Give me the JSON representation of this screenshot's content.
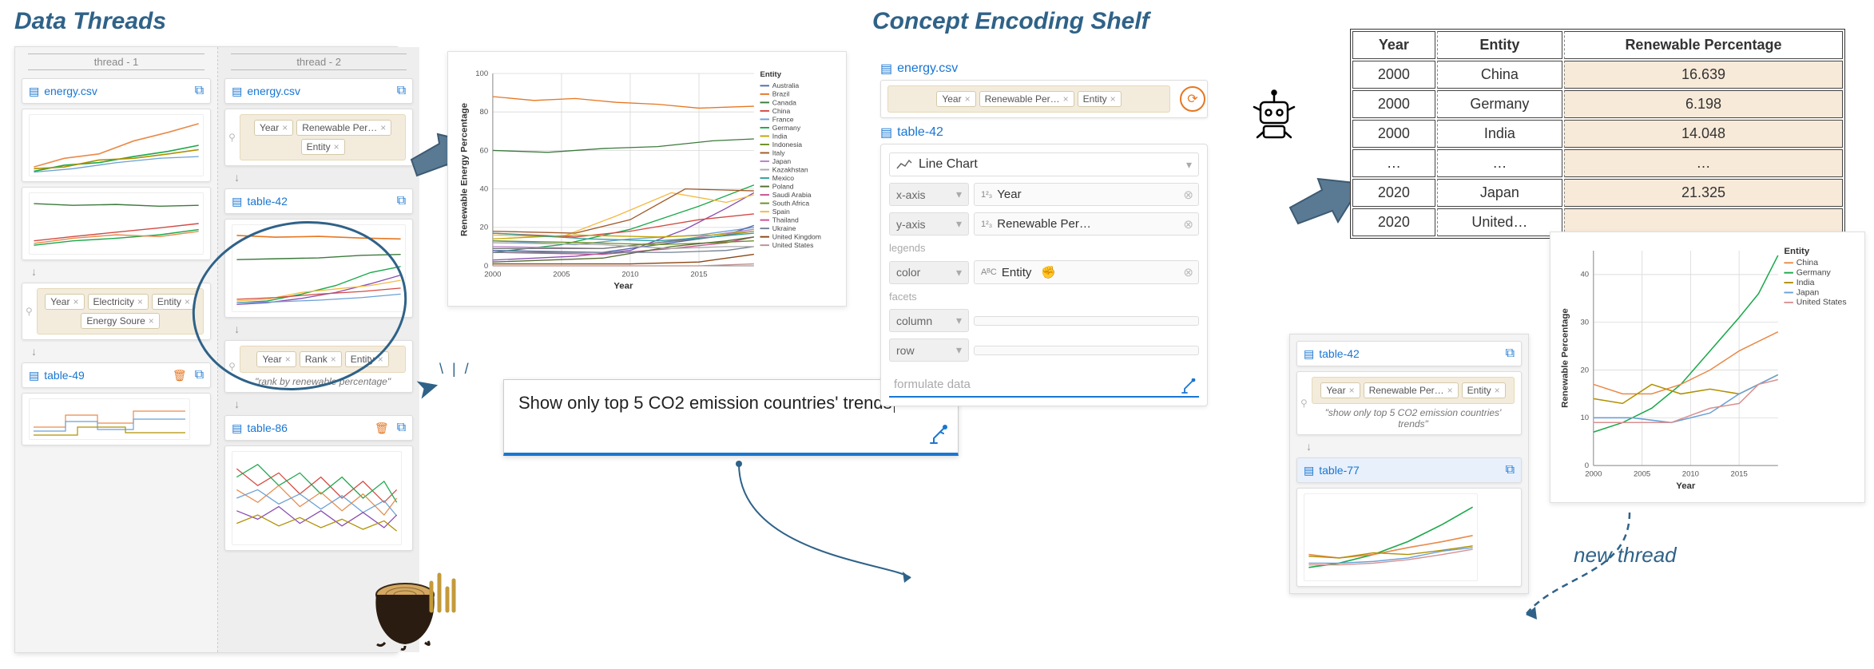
{
  "titles": {
    "dataThreads": "Data Threads",
    "conceptShelf": "Concept Encoding Shelf",
    "newThread": "new thread"
  },
  "threads": {
    "thread1": {
      "header": "thread - 1",
      "source": "energy.csv",
      "pills": [
        "Year",
        "Electricity",
        "Entity",
        "Energy Soure"
      ],
      "table": "table-49"
    },
    "thread2": {
      "header": "thread - 2",
      "source": "energy.csv",
      "pills1": [
        "Year",
        "Renewable Per…",
        "Entity"
      ],
      "table1": "table-42",
      "pills2": [
        "Year",
        "Rank",
        "Entity"
      ],
      "caption2": "\"rank by renewable percentage\"",
      "table2": "table-86"
    }
  },
  "prompt": {
    "text": "Show only top 5 CO2 emission countries' trends"
  },
  "shelf": {
    "source": "energy.csv",
    "pills": [
      "Year",
      "Renewable Per…",
      "Entity"
    ],
    "table": "table-42",
    "chartType": "Line Chart",
    "xaxis": {
      "label": "x-axis",
      "field": "Year",
      "type": "1²₃"
    },
    "yaxis": {
      "label": "y-axis",
      "field": "Renewable Per…",
      "type": "1²₃"
    },
    "legendsLabel": "legends",
    "color": {
      "label": "color",
      "field": "Entity",
      "type": "AᴮC"
    },
    "facetsLabel": "facets",
    "column": "column",
    "row": "row",
    "formulate": "formulate data"
  },
  "table": {
    "headers": [
      "Year",
      "Entity",
      "Renewable Percentage"
    ],
    "rows": [
      [
        "2000",
        "China",
        "16.639"
      ],
      [
        "2000",
        "Germany",
        "6.198"
      ],
      [
        "2000",
        "India",
        "14.048"
      ],
      [
        "…",
        "…",
        "…"
      ],
      [
        "2020",
        "Japan",
        "21.325"
      ],
      [
        "2020",
        "United…",
        ""
      ]
    ]
  },
  "newThreadCard": {
    "table1": "table-42",
    "pills": [
      "Year",
      "Renewable Per…",
      "Entity"
    ],
    "caption": "\"show only top 5 CO2 emission countries' trends\"",
    "table2": "table-77"
  },
  "chart1": {
    "title": "Entity",
    "xlabel": "Year",
    "ylabel": "Renewable Energy Percentage",
    "xticks": [
      2000,
      2005,
      2010,
      2015
    ],
    "yticks": [
      0,
      20,
      40,
      60,
      80,
      100
    ],
    "xlim": [
      2000,
      2019
    ],
    "ylim": [
      0,
      100
    ],
    "background": "#ffffff",
    "grid_color": "#dddddd",
    "line_width": 1.4,
    "label_fontsize": 12,
    "tick_fontsize": 10,
    "legend_fontsize": 9,
    "legend": [
      "Australia",
      "Brazil",
      "Canada",
      "China",
      "France",
      "Germany",
      "India",
      "Indonesia",
      "Italy",
      "Japan",
      "Kazakhstan",
      "Mexico",
      "Poland",
      "Saudi Arabia",
      "South Africa",
      "Spain",
      "Thailand",
      "Ukraine",
      "United Kingdom",
      "United States"
    ],
    "series": [
      {
        "name": "Brazil",
        "color": "#e67722",
        "values": [
          [
            2000,
            88
          ],
          [
            2003,
            86
          ],
          [
            2006,
            87
          ],
          [
            2009,
            85
          ],
          [
            2012,
            84
          ],
          [
            2015,
            82
          ],
          [
            2019,
            83
          ]
        ]
      },
      {
        "name": "Canada",
        "color": "#3b7a3b",
        "values": [
          [
            2000,
            60
          ],
          [
            2004,
            59
          ],
          [
            2008,
            61
          ],
          [
            2012,
            62
          ],
          [
            2016,
            65
          ],
          [
            2019,
            66
          ]
        ]
      },
      {
        "name": "Germany",
        "color": "#1aa84a",
        "values": [
          [
            2000,
            7
          ],
          [
            2005,
            11
          ],
          [
            2010,
            19
          ],
          [
            2015,
            31
          ],
          [
            2019,
            42
          ]
        ]
      },
      {
        "name": "UK",
        "color": "#894eb0",
        "values": [
          [
            2000,
            3
          ],
          [
            2006,
            5
          ],
          [
            2010,
            8
          ],
          [
            2014,
            19
          ],
          [
            2017,
            30
          ],
          [
            2019,
            38
          ]
        ]
      },
      {
        "name": "Spain",
        "color": "#f5b942",
        "values": [
          [
            2000,
            16
          ],
          [
            2005,
            15
          ],
          [
            2009,
            26
          ],
          [
            2013,
            38
          ],
          [
            2017,
            33
          ],
          [
            2019,
            37
          ]
        ]
      },
      {
        "name": "Italy",
        "color": "#a05a2a",
        "values": [
          [
            2000,
            18
          ],
          [
            2006,
            17
          ],
          [
            2010,
            24
          ],
          [
            2014,
            40
          ],
          [
            2019,
            39
          ]
        ]
      },
      {
        "name": "China",
        "color": "#d24a43",
        "values": [
          [
            2000,
            17
          ],
          [
            2006,
            15
          ],
          [
            2010,
            18
          ],
          [
            2015,
            24
          ],
          [
            2019,
            27
          ]
        ]
      },
      {
        "name": "France",
        "color": "#6aa1d6",
        "values": [
          [
            2000,
            13
          ],
          [
            2006,
            11
          ],
          [
            2010,
            14
          ],
          [
            2015,
            16
          ],
          [
            2019,
            20
          ]
        ]
      },
      {
        "name": "Australia",
        "color": "#4e6aa8",
        "values": [
          [
            2000,
            8
          ],
          [
            2008,
            7
          ],
          [
            2013,
            12
          ],
          [
            2017,
            16
          ],
          [
            2019,
            21
          ]
        ]
      },
      {
        "name": "Japan",
        "color": "#b97fc9",
        "values": [
          [
            2000,
            10
          ],
          [
            2008,
            9
          ],
          [
            2012,
            12
          ],
          [
            2016,
            16
          ],
          [
            2019,
            19
          ]
        ]
      },
      {
        "name": "US",
        "color": "#7a7a7a",
        "values": [
          [
            2000,
            9
          ],
          [
            2008,
            9
          ],
          [
            2012,
            12
          ],
          [
            2016,
            15
          ],
          [
            2019,
            18
          ]
        ]
      },
      {
        "name": "India",
        "color": "#c1a500",
        "values": [
          [
            2000,
            14
          ],
          [
            2006,
            16
          ],
          [
            2012,
            15
          ],
          [
            2016,
            16
          ],
          [
            2019,
            18
          ]
        ]
      },
      {
        "name": "Mexico",
        "color": "#2fa0a0",
        "values": [
          [
            2000,
            17
          ],
          [
            2007,
            14
          ],
          [
            2012,
            13
          ],
          [
            2016,
            15
          ],
          [
            2019,
            17
          ]
        ]
      },
      {
        "name": "Thailand",
        "color": "#c94f8f",
        "values": [
          [
            2000,
            7
          ],
          [
            2008,
            6
          ],
          [
            2013,
            9
          ],
          [
            2017,
            12
          ],
          [
            2019,
            15
          ]
        ]
      },
      {
        "name": "Indonesia",
        "color": "#6b8e23",
        "values": [
          [
            2000,
            13
          ],
          [
            2007,
            12
          ],
          [
            2012,
            11
          ],
          [
            2016,
            12
          ],
          [
            2019,
            13
          ]
        ]
      },
      {
        "name": "Poland",
        "color": "#556b2f",
        "values": [
          [
            2000,
            2
          ],
          [
            2008,
            4
          ],
          [
            2013,
            10
          ],
          [
            2017,
            13
          ],
          [
            2019,
            15
          ]
        ]
      },
      {
        "name": "Ukraine",
        "color": "#708090",
        "values": [
          [
            2000,
            7
          ],
          [
            2008,
            7
          ],
          [
            2013,
            7
          ],
          [
            2017,
            8
          ],
          [
            2019,
            10
          ]
        ]
      },
      {
        "name": "Kazakhstan",
        "color": "#a9a9a9",
        "values": [
          [
            2000,
            12
          ],
          [
            2008,
            11
          ],
          [
            2013,
            9
          ],
          [
            2017,
            10
          ],
          [
            2019,
            10
          ]
        ]
      },
      {
        "name": "SA",
        "color": "#8b4513",
        "values": [
          [
            2000,
            1
          ],
          [
            2010,
            1
          ],
          [
            2015,
            2
          ],
          [
            2019,
            6
          ]
        ]
      },
      {
        "name": "Saudi",
        "color": "#bc8f8f",
        "values": [
          [
            2000,
            0
          ],
          [
            2010,
            0
          ],
          [
            2015,
            0
          ],
          [
            2019,
            1
          ]
        ]
      }
    ]
  },
  "chart2": {
    "title": "Entity",
    "xlabel": "Year",
    "ylabel": "Renewable Percentage",
    "xticks": [
      2000,
      2005,
      2010,
      2015
    ],
    "yticks": [
      0,
      10,
      20,
      30,
      40
    ],
    "xlim": [
      2000,
      2019
    ],
    "ylim": [
      0,
      45
    ],
    "background": "#ffffff",
    "grid_color": "#dddddd",
    "line_width": 1.6,
    "label_fontsize": 12,
    "tick_fontsize": 10,
    "legend_fontsize": 11,
    "legend": [
      "China",
      "Germany",
      "India",
      "Japan",
      "United States"
    ],
    "series": [
      {
        "name": "Germany",
        "color": "#1aa84a",
        "values": [
          [
            2000,
            7
          ],
          [
            2003,
            9
          ],
          [
            2006,
            12
          ],
          [
            2009,
            17
          ],
          [
            2012,
            24
          ],
          [
            2015,
            31
          ],
          [
            2017,
            36
          ],
          [
            2019,
            44
          ]
        ]
      },
      {
        "name": "China",
        "color": "#e98a4a",
        "values": [
          [
            2000,
            17
          ],
          [
            2003,
            15
          ],
          [
            2006,
            15
          ],
          [
            2009,
            17
          ],
          [
            2012,
            20
          ],
          [
            2015,
            24
          ],
          [
            2017,
            26
          ],
          [
            2019,
            28
          ]
        ]
      },
      {
        "name": "India",
        "color": "#b09000",
        "values": [
          [
            2000,
            14
          ],
          [
            2003,
            13
          ],
          [
            2006,
            17
          ],
          [
            2009,
            15
          ],
          [
            2012,
            16
          ],
          [
            2015,
            15
          ],
          [
            2017,
            17
          ],
          [
            2019,
            19
          ]
        ]
      },
      {
        "name": "Japan",
        "color": "#6aa1d6",
        "values": [
          [
            2000,
            10
          ],
          [
            2004,
            10
          ],
          [
            2008,
            9
          ],
          [
            2012,
            11
          ],
          [
            2015,
            15
          ],
          [
            2017,
            17
          ],
          [
            2019,
            19
          ]
        ]
      },
      {
        "name": "United States",
        "color": "#d89090",
        "values": [
          [
            2000,
            9
          ],
          [
            2004,
            9
          ],
          [
            2008,
            9
          ],
          [
            2012,
            12
          ],
          [
            2015,
            13
          ],
          [
            2017,
            17
          ],
          [
            2019,
            18
          ]
        ]
      }
    ]
  },
  "colors": {
    "accent": "#1976d2",
    "title": "#2f6288",
    "orange": "#e67722",
    "arrow_fill": "#5a7a94",
    "arrow_stroke": "#3d5a72"
  }
}
